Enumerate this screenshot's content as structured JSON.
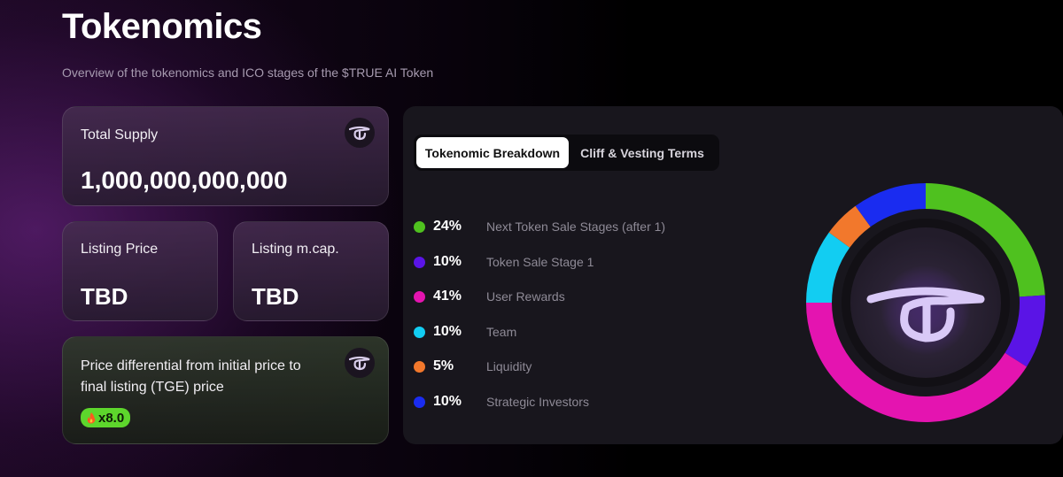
{
  "header": {
    "title": "Tokenomics",
    "subtitle": "Overview of the tokenomics and ICO stages of the $TRUE AI Token"
  },
  "cards": {
    "total_supply": {
      "label": "Total Supply",
      "value": "1,000,000,000,000"
    },
    "listing_price": {
      "label": "Listing Price",
      "value": "TBD"
    },
    "listing_mcap": {
      "label": "Listing m.cap.",
      "value": "TBD"
    },
    "price_differential": {
      "label": "Price differential from initial price to final listing (TGE) price",
      "badge_icon": "fire-icon",
      "badge_value": "x8.0"
    }
  },
  "tabs": [
    {
      "label": "Tokenomic Breakdown",
      "active": true
    },
    {
      "label": "Cliff & Vesting Terms",
      "active": false
    }
  ],
  "colors": {
    "accent_green": "#5dd62c",
    "tab_active_bg": "#ffffff"
  },
  "chart_data": {
    "type": "pie",
    "series": [
      {
        "pct_label": "24%",
        "label": "Next Token Sale Stages (after 1)",
        "value": 24,
        "color": "#4fc11f"
      },
      {
        "pct_label": "10%",
        "label": "Token Sale Stage 1",
        "value": 10,
        "color": "#5a14e6"
      },
      {
        "pct_label": "41%",
        "label": "User Rewards",
        "value": 41,
        "color": "#e414b0"
      },
      {
        "pct_label": "10%",
        "label": "Team",
        "value": 10,
        "color": "#12cdf2"
      },
      {
        "pct_label": "5%",
        "label": "Liquidity",
        "value": 5,
        "color": "#f2782c"
      },
      {
        "pct_label": "10%",
        "label": "Strategic Investors",
        "value": 10,
        "color": "#1a2cf0"
      }
    ],
    "center_icon": "true-ai-logo-icon"
  }
}
